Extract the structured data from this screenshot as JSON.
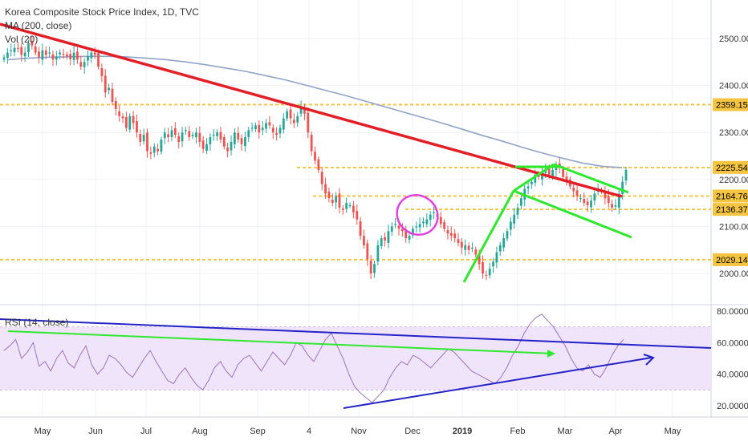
{
  "legend": {
    "title": "Korea Composite Stock Price Index, 1D, TVC",
    "ma": "MA (200, close)",
    "vol": "Vol (20)"
  },
  "rsi_legend": "RSI (14, close)",
  "colors": {
    "up": "#26a69a",
    "down": "#ef5350",
    "candle": "#303030",
    "ma_line": "#8fa3c9",
    "trend_red": "#e21f26",
    "trend_green": "#2ee82e",
    "level": "#f5c542",
    "level_label_bg": "#f5c542",
    "ellipse": "#e040e0",
    "rsi_line": "#9a74b8",
    "rsi_band": "#f0e4fb",
    "trend_blue": "#2323c8"
  },
  "chart_data": [
    {
      "type": "candlestick",
      "title": "Korea Composite Stock Price Index, 1D, TVC",
      "x_ticks": [
        "May",
        "Jun",
        "Jul",
        "Aug",
        "Sep",
        "4",
        "Nov",
        "Dec",
        "2019",
        "Feb",
        "Mar",
        "Apr",
        "May"
      ],
      "y_ticks": [
        "2500.00",
        "2400.00",
        "2300.00",
        "2200.00",
        "2100.00",
        "2000.00"
      ],
      "ylim": [
        1950,
        2560
      ],
      "horizontal_levels": [
        {
          "value": 2359.15,
          "label": "2359.15"
        },
        {
          "value": 2225.54,
          "label": "2225.54"
        },
        {
          "value": 2164.76,
          "label": "2164.76"
        },
        {
          "value": 2136.37,
          "label": "2136.37"
        },
        {
          "value": 2029.14,
          "label": "2029.14"
        }
      ],
      "close_series": [
        2460,
        2470,
        2475,
        2480,
        2478,
        2465,
        2470,
        2490,
        2485,
        2470,
        2460,
        2475,
        2465,
        2470,
        2455,
        2462,
        2470,
        2465,
        2462,
        2456,
        2470,
        2455,
        2440,
        2450,
        2462,
        2470,
        2465,
        2440,
        2420,
        2385,
        2395,
        2365,
        2350,
        2335,
        2330,
        2310,
        2335,
        2320,
        2300,
        2280,
        2295,
        2260,
        2255,
        2270,
        2260,
        2285,
        2300,
        2290,
        2305,
        2295,
        2280,
        2300,
        2305,
        2290,
        2295,
        2300,
        2280,
        2265,
        2275,
        2290,
        2295,
        2300,
        2285,
        2270,
        2260,
        2280,
        2300,
        2285,
        2275,
        2290,
        2305,
        2310,
        2315,
        2300,
        2310,
        2320,
        2315,
        2300,
        2295,
        2310,
        2330,
        2345,
        2330,
        2320,
        2335,
        2355,
        2340,
        2300,
        2260,
        2240,
        2220,
        2190,
        2170,
        2160,
        2150,
        2165,
        2140,
        2135,
        2150,
        2145,
        2130,
        2115,
        2080,
        2060,
        2030,
        2000,
        2020,
        2060,
        2075,
        2070,
        2090,
        2100,
        2105,
        2095,
        2090,
        2075,
        2080,
        2095,
        2100,
        2105,
        2110,
        2115,
        2125,
        2130,
        2120,
        2105,
        2095,
        2085,
        2080,
        2075,
        2065,
        2055,
        2060,
        2050,
        2055,
        2040,
        2020,
        2000,
        1995,
        2010,
        2025,
        2045,
        2060,
        2075,
        2090,
        2110,
        2125,
        2140,
        2160,
        2180,
        2185,
        2195,
        2210,
        2205,
        2215,
        2220,
        2210,
        2220,
        2230,
        2225,
        2205,
        2195,
        2185,
        2175,
        2165,
        2160,
        2150,
        2145,
        2155,
        2170,
        2180,
        2175,
        2160,
        2150,
        2140,
        2145,
        2170,
        2195,
        2220
      ],
      "ma_series": [
        2455,
        2458,
        2460,
        2461,
        2462,
        2462,
        2461,
        2458,
        2455,
        2450,
        2444,
        2437,
        2430,
        2421,
        2412,
        2401,
        2390,
        2379,
        2367,
        2355,
        2343,
        2331,
        2319,
        2306,
        2293,
        2281,
        2268,
        2256,
        2245,
        2235,
        2228,
        2225
      ],
      "rsi": {
        "y_ticks": [
          "80.0000",
          "60.0000",
          "40.0000",
          "20.0000"
        ],
        "ylim": [
          15,
          85
        ],
        "band": [
          30,
          70
        ],
        "values": [
          55,
          58,
          62,
          50,
          54,
          60,
          45,
          48,
          42,
          50,
          55,
          47,
          44,
          52,
          58,
          46,
          40,
          44,
          52,
          50,
          46,
          41,
          38,
          44,
          50,
          55,
          48,
          42,
          36,
          34,
          40,
          44,
          38,
          33,
          30,
          36,
          44,
          48,
          42,
          38,
          46,
          50,
          52,
          47,
          42,
          48,
          54,
          50,
          46,
          52,
          60,
          58,
          52,
          48,
          55,
          62,
          66,
          58,
          50,
          40,
          32,
          28,
          25,
          22,
          26,
          30,
          38,
          44,
          48,
          46,
          52,
          50,
          47,
          44,
          48,
          52,
          56,
          54,
          50,
          46,
          42,
          40,
          38,
          36,
          34,
          38,
          44,
          52,
          58,
          66,
          72,
          76,
          78,
          74,
          70,
          64,
          58,
          50,
          44,
          42,
          46,
          40,
          38,
          44,
          52,
          58,
          62
        ]
      }
    }
  ]
}
